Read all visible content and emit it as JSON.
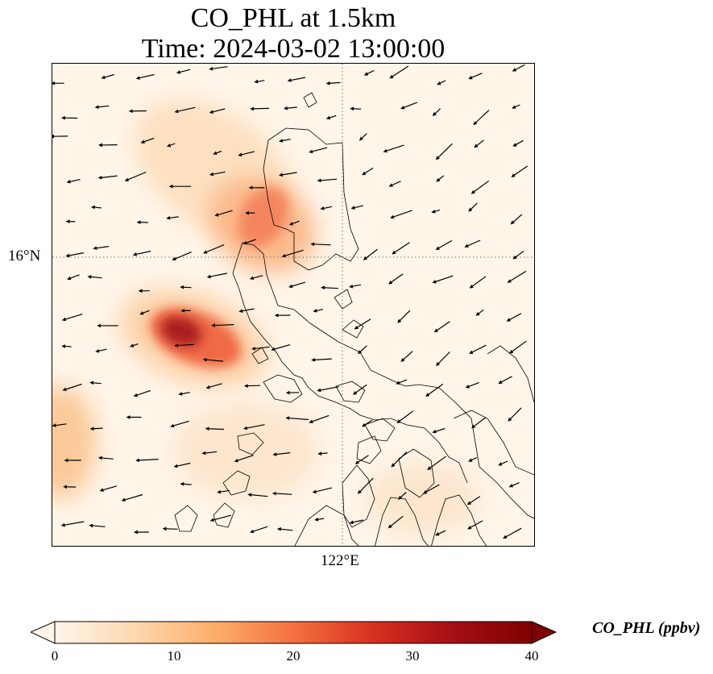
{
  "title": {
    "line1": "CO_PHL at 1.5km",
    "line2": "Time: 2024-03-02 13:00:00"
  },
  "axes": {
    "lat_label": "16°N",
    "lon_label": "122°E"
  },
  "colorbar": {
    "label": "CO_PHL (ppbv)",
    "ticks": [
      "0",
      "10",
      "20",
      "30",
      "40"
    ],
    "min": 0,
    "max": 40,
    "extend": "both",
    "colormap": [
      "#fff5eb",
      "#fdd8b0",
      "#fdae6b",
      "#f4713f",
      "#d7301f",
      "#a50f15",
      "#7f0000"
    ]
  }
}
